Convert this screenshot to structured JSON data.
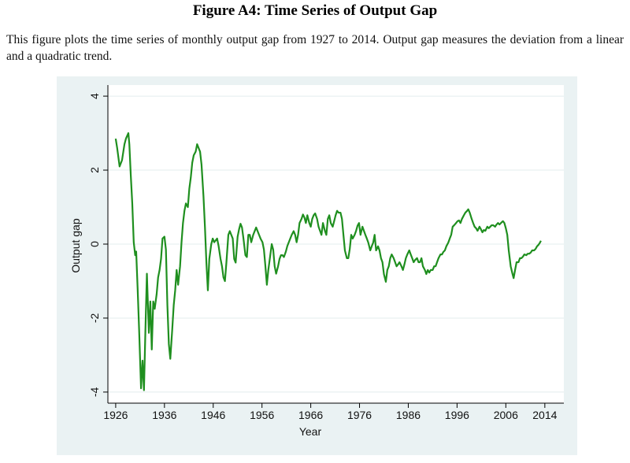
{
  "header": {
    "title": "Figure A4: Time Series of Output Gap"
  },
  "caption": "This figure plots the time series of monthly output gap from 1927 to 2014. Output gap measures the deviation from a linear and a quadratic trend.",
  "chart_data": {
    "type": "line",
    "x_label": "Year",
    "y_label": "Output gap",
    "color": "#1f8f1f",
    "grid": true,
    "xlim": [
      1924.4,
      2017.9
    ],
    "ylim": [
      -4.3,
      4.3
    ],
    "xticks": [
      1926,
      1936,
      1946,
      1956,
      1966,
      1976,
      1986,
      1996,
      2006,
      2014
    ],
    "yticks": [
      -4,
      -2,
      0,
      2,
      4
    ],
    "x": [
      1926.0,
      1926.3,
      1926.8,
      1927.3,
      1927.8,
      1928.1,
      1928.6,
      1928.8,
      1929.1,
      1929.4,
      1929.7,
      1930.0,
      1930.2,
      1930.5,
      1930.8,
      1931.2,
      1931.5,
      1931.8,
      1932.1,
      1932.4,
      1932.8,
      1933.1,
      1933.4,
      1933.7,
      1934.0,
      1934.4,
      1934.7,
      1935.0,
      1935.3,
      1935.6,
      1936.0,
      1936.3,
      1936.6,
      1936.9,
      1937.2,
      1937.6,
      1937.9,
      1938.2,
      1938.5,
      1938.8,
      1939.2,
      1939.5,
      1939.8,
      1940.1,
      1940.4,
      1940.8,
      1941.1,
      1941.4,
      1941.7,
      1942.0,
      1942.4,
      1942.7,
      1943.0,
      1943.3,
      1943.6,
      1944.0,
      1944.3,
      1944.6,
      1944.9,
      1945.2,
      1945.6,
      1945.9,
      1946.2,
      1946.5,
      1946.8,
      1947.1,
      1947.5,
      1947.8,
      1948.1,
      1948.4,
      1948.7,
      1949.1,
      1949.4,
      1949.7,
      1950.0,
      1950.3,
      1950.6,
      1951.0,
      1951.3,
      1951.6,
      1951.9,
      1952.2,
      1952.6,
      1952.9,
      1953.2,
      1953.5,
      1953.8,
      1954.2,
      1954.5,
      1954.8,
      1955.1,
      1955.4,
      1955.7,
      1956.1,
      1956.4,
      1956.7,
      1957.0,
      1957.3,
      1957.7,
      1958.0,
      1958.3,
      1958.6,
      1958.9,
      1959.3,
      1959.6,
      1959.9,
      1960.2,
      1960.5,
      1960.9,
      1961.2,
      1961.5,
      1961.8,
      1962.1,
      1962.5,
      1962.8,
      1963.1,
      1963.4,
      1963.7,
      1964.1,
      1964.4,
      1964.7,
      1965.0,
      1965.3,
      1965.7,
      1966.0,
      1966.3,
      1966.6,
      1966.9,
      1967.3,
      1967.6,
      1967.9,
      1968.2,
      1968.5,
      1968.9,
      1969.2,
      1969.5,
      1969.8,
      1970.1,
      1970.5,
      1970.8,
      1971.1,
      1971.4,
      1971.7,
      1972.1,
      1972.4,
      1972.7,
      1973.0,
      1973.4,
      1973.7,
      1974.0,
      1974.3,
      1974.6,
      1975.0,
      1975.3,
      1975.6,
      1975.9,
      1976.2,
      1976.6,
      1976.9,
      1977.2,
      1977.5,
      1977.8,
      1978.2,
      1978.5,
      1978.8,
      1979.1,
      1979.4,
      1979.8,
      1980.1,
      1980.4,
      1980.7,
      1981.0,
      1981.4,
      1981.7,
      1982.0,
      1982.3,
      1982.6,
      1983.0,
      1983.3,
      1983.6,
      1983.9,
      1984.2,
      1984.6,
      1984.9,
      1985.2,
      1985.5,
      1985.8,
      1986.2,
      1986.5,
      1986.8,
      1987.1,
      1987.4,
      1987.8,
      1988.1,
      1988.4,
      1988.7,
      1989.0,
      1989.4,
      1989.7,
      1990.0,
      1990.3,
      1990.6,
      1991.0,
      1991.3,
      1991.6,
      1991.9,
      1992.2,
      1992.6,
      1992.9,
      1993.2,
      1993.5,
      1993.8,
      1994.2,
      1994.5,
      1994.8,
      1995.1,
      1995.4,
      1995.8,
      1996.1,
      1996.4,
      1996.7,
      1997.0,
      1997.4,
      1997.7,
      1998.0,
      1998.3,
      1998.6,
      1999.0,
      1999.3,
      1999.6,
      1999.9,
      2000.2,
      2000.6,
      2000.9,
      2001.2,
      2001.5,
      2001.8,
      2002.2,
      2002.5,
      2002.8,
      2003.1,
      2003.4,
      2003.8,
      2004.1,
      2004.4,
      2004.7,
      2005.0,
      2005.4,
      2005.7,
      2006.0,
      2006.3,
      2006.6,
      2007.0,
      2007.3,
      2007.6,
      2007.9,
      2008.2,
      2008.6,
      2008.9,
      2009.2,
      2009.5,
      2009.8,
      2010.2,
      2010.5,
      2010.8,
      2011.1,
      2011.4,
      2011.8,
      2012.1,
      2012.4,
      2012.7,
      2013.0,
      2013.2
    ],
    "values": [
      2.85,
      2.6,
      2.1,
      2.27,
      2.7,
      2.85,
      3.0,
      2.7,
      1.85,
      1.1,
      0.05,
      -0.3,
      -0.2,
      -1.2,
      -2.3,
      -3.9,
      -3.15,
      -3.95,
      -2.3,
      -0.8,
      -2.4,
      -1.55,
      -2.85,
      -1.55,
      -1.75,
      -1.35,
      -0.9,
      -0.7,
      -0.4,
      0.15,
      0.2,
      -0.15,
      -1.65,
      -2.7,
      -3.1,
      -2.3,
      -1.65,
      -1.25,
      -0.7,
      -1.1,
      -0.6,
      0.05,
      0.57,
      0.9,
      1.1,
      1.0,
      1.5,
      1.8,
      2.2,
      2.4,
      2.5,
      2.7,
      2.6,
      2.5,
      2.15,
      1.3,
      0.47,
      -0.5,
      -1.25,
      -0.4,
      0.0,
      0.15,
      0.05,
      0.1,
      0.15,
      -0.05,
      -0.4,
      -0.6,
      -0.9,
      -1.0,
      -0.5,
      0.25,
      0.35,
      0.25,
      0.15,
      -0.4,
      -0.5,
      0.2,
      0.4,
      0.55,
      0.45,
      0.15,
      -0.3,
      -0.35,
      0.25,
      0.25,
      0.05,
      0.25,
      0.35,
      0.45,
      0.35,
      0.25,
      0.15,
      0.05,
      -0.15,
      -0.6,
      -1.1,
      -0.7,
      -0.3,
      0.0,
      -0.15,
      -0.6,
      -0.8,
      -0.6,
      -0.4,
      -0.3,
      -0.3,
      -0.35,
      -0.2,
      -0.05,
      0.05,
      0.15,
      0.25,
      0.35,
      0.25,
      0.05,
      0.25,
      0.57,
      0.68,
      0.8,
      0.72,
      0.57,
      0.78,
      0.57,
      0.47,
      0.68,
      0.78,
      0.83,
      0.68,
      0.47,
      0.36,
      0.25,
      0.57,
      0.36,
      0.25,
      0.68,
      0.78,
      0.57,
      0.47,
      0.62,
      0.78,
      0.9,
      0.85,
      0.85,
      0.68,
      0.25,
      -0.17,
      -0.38,
      -0.38,
      -0.13,
      0.25,
      0.15,
      0.25,
      0.36,
      0.5,
      0.57,
      0.25,
      0.47,
      0.36,
      0.25,
      0.15,
      0.04,
      -0.17,
      -0.06,
      0.04,
      0.25,
      -0.17,
      -0.06,
      -0.17,
      -0.38,
      -0.49,
      -0.81,
      -1.02,
      -0.7,
      -0.6,
      -0.38,
      -0.28,
      -0.38,
      -0.49,
      -0.6,
      -0.55,
      -0.49,
      -0.6,
      -0.7,
      -0.55,
      -0.38,
      -0.28,
      -0.17,
      -0.28,
      -0.38,
      -0.49,
      -0.43,
      -0.38,
      -0.49,
      -0.49,
      -0.38,
      -0.6,
      -0.7,
      -0.81,
      -0.7,
      -0.77,
      -0.7,
      -0.7,
      -0.6,
      -0.6,
      -0.49,
      -0.38,
      -0.28,
      -0.28,
      -0.21,
      -0.17,
      -0.06,
      0.04,
      0.15,
      0.25,
      0.47,
      0.51,
      0.57,
      0.62,
      0.64,
      0.57,
      0.68,
      0.78,
      0.85,
      0.89,
      0.94,
      0.85,
      0.68,
      0.57,
      0.47,
      0.43,
      0.36,
      0.47,
      0.4,
      0.32,
      0.38,
      0.36,
      0.47,
      0.43,
      0.47,
      0.51,
      0.51,
      0.47,
      0.53,
      0.57,
      0.53,
      0.57,
      0.62,
      0.57,
      0.43,
      0.25,
      -0.17,
      -0.6,
      -0.77,
      -0.92,
      -0.7,
      -0.49,
      -0.49,
      -0.38,
      -0.38,
      -0.34,
      -0.28,
      -0.3,
      -0.26,
      -0.26,
      -0.23,
      -0.17,
      -0.17,
      -0.13,
      -0.06,
      -0.02,
      0.04,
      0.09
    ]
  }
}
